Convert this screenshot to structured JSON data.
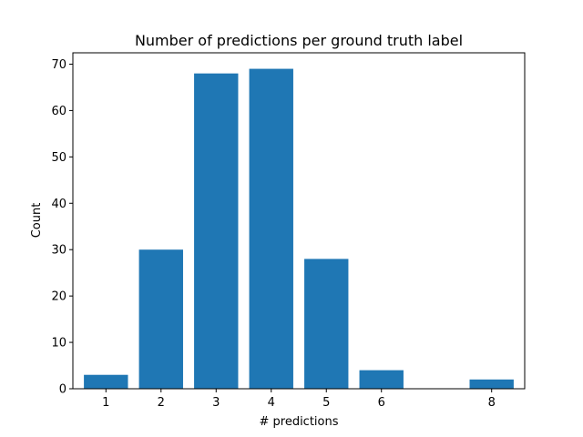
{
  "chart_data": {
    "type": "bar",
    "title": "Number of predictions per ground truth label",
    "xlabel": "# predictions",
    "ylabel": "Count",
    "x": [
      1,
      2,
      3,
      4,
      5,
      6,
      8
    ],
    "values": [
      3,
      30,
      68,
      69,
      28,
      4,
      2
    ],
    "x_ticks": [
      1,
      2,
      3,
      4,
      5,
      6,
      8
    ],
    "y_ticks": [
      0,
      10,
      20,
      30,
      40,
      50,
      60,
      70
    ],
    "xlim": [
      0.4,
      8.6
    ],
    "ylim": [
      0,
      72.45
    ],
    "bar_color": "#1f77b4",
    "grid": false,
    "legend": "none"
  }
}
